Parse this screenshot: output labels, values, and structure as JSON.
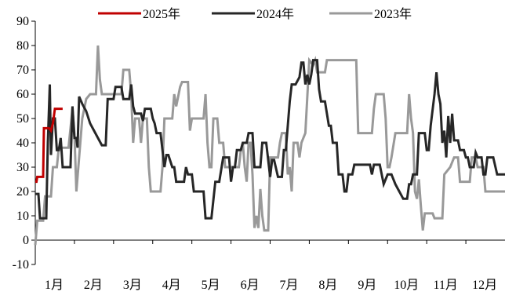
{
  "chart_data": {
    "type": "line",
    "title": "",
    "xlabel": "",
    "ylabel": "",
    "ylim": [
      -10,
      90
    ],
    "yticks": [
      -10,
      0,
      10,
      20,
      30,
      40,
      50,
      60,
      70,
      80,
      90
    ],
    "xlim": [
      1,
      13
    ],
    "x_tick_labels": [
      "1月",
      "2月",
      "3月",
      "4月",
      "5月",
      "6月",
      "7月",
      "8月",
      "9月",
      "10月",
      "11月",
      "12月"
    ],
    "legend_position": "top",
    "grid": false,
    "series": [
      {
        "name": "2025年",
        "color": "#c00000",
        "points": [
          [
            1.0,
            24
          ],
          [
            1.03,
            24
          ],
          [
            1.05,
            26
          ],
          [
            1.1,
            26
          ],
          [
            1.15,
            26
          ],
          [
            1.2,
            26
          ],
          [
            1.22,
            46
          ],
          [
            1.3,
            46
          ],
          [
            1.35,
            46
          ],
          [
            1.4,
            45
          ],
          [
            1.45,
            48
          ],
          [
            1.5,
            54
          ],
          [
            1.6,
            54
          ],
          [
            1.7,
            54
          ]
        ]
      },
      {
        "name": "2024年",
        "color": "#262626",
        "points": [
          [
            1.0,
            19
          ],
          [
            1.08,
            19
          ],
          [
            1.12,
            9
          ],
          [
            1.28,
            9
          ],
          [
            1.32,
            40
          ],
          [
            1.37,
            64
          ],
          [
            1.4,
            35
          ],
          [
            1.45,
            50
          ],
          [
            1.5,
            50
          ],
          [
            1.55,
            37
          ],
          [
            1.6,
            37
          ],
          [
            1.65,
            42
          ],
          [
            1.7,
            30
          ],
          [
            1.9,
            30
          ],
          [
            1.95,
            55
          ],
          [
            2.0,
            42
          ],
          [
            2.05,
            42
          ],
          [
            2.08,
            38
          ],
          [
            2.12,
            59
          ],
          [
            2.2,
            56
          ],
          [
            2.3,
            53
          ],
          [
            2.4,
            48
          ],
          [
            2.5,
            45
          ],
          [
            2.6,
            42
          ],
          [
            2.7,
            39
          ],
          [
            2.8,
            39
          ],
          [
            2.85,
            58
          ],
          [
            2.9,
            58
          ],
          [
            3.0,
            58
          ],
          [
            3.05,
            63
          ],
          [
            3.2,
            63
          ],
          [
            3.25,
            58
          ],
          [
            3.4,
            58
          ],
          [
            3.45,
            64
          ],
          [
            3.5,
            55
          ],
          [
            3.55,
            52
          ],
          [
            3.7,
            52
          ],
          [
            3.75,
            49
          ],
          [
            3.8,
            54
          ],
          [
            3.95,
            54
          ],
          [
            4.0,
            50
          ],
          [
            4.05,
            48
          ],
          [
            4.1,
            44
          ],
          [
            4.2,
            44
          ],
          [
            4.3,
            30
          ],
          [
            4.35,
            35
          ],
          [
            4.4,
            35
          ],
          [
            4.5,
            30
          ],
          [
            4.55,
            30
          ],
          [
            4.6,
            24
          ],
          [
            4.8,
            24
          ],
          [
            4.85,
            30
          ],
          [
            4.9,
            27
          ],
          [
            5.0,
            27
          ],
          [
            5.05,
            20
          ],
          [
            5.3,
            20
          ],
          [
            5.35,
            9
          ],
          [
            5.5,
            9
          ],
          [
            5.6,
            24
          ],
          [
            5.7,
            24
          ],
          [
            5.8,
            34
          ],
          [
            5.95,
            34
          ],
          [
            6.0,
            24
          ],
          [
            6.05,
            30
          ],
          [
            6.1,
            30
          ],
          [
            6.15,
            37
          ],
          [
            6.25,
            37
          ],
          [
            6.3,
            40
          ],
          [
            6.4,
            40
          ],
          [
            6.45,
            44
          ],
          [
            6.55,
            44
          ],
          [
            6.6,
            30
          ],
          [
            6.75,
            30
          ],
          [
            6.8,
            40
          ],
          [
            6.9,
            40
          ],
          [
            7.0,
            26
          ],
          [
            7.05,
            33
          ],
          [
            7.1,
            33
          ],
          [
            7.2,
            26
          ],
          [
            7.3,
            26
          ],
          [
            7.35,
            37
          ],
          [
            7.4,
            37
          ],
          [
            7.5,
            57
          ],
          [
            7.55,
            64
          ],
          [
            7.65,
            64
          ],
          [
            7.75,
            67
          ],
          [
            7.8,
            73
          ],
          [
            7.85,
            73
          ],
          [
            7.9,
            64
          ],
          [
            7.95,
            68
          ],
          [
            8.0,
            64
          ],
          [
            8.05,
            68
          ],
          [
            8.1,
            74
          ],
          [
            8.2,
            74
          ],
          [
            8.25,
            62
          ],
          [
            8.3,
            57
          ],
          [
            8.4,
            57
          ],
          [
            8.5,
            47
          ],
          [
            8.55,
            47
          ],
          [
            8.6,
            40
          ],
          [
            8.7,
            40
          ],
          [
            8.75,
            27
          ],
          [
            8.85,
            27
          ],
          [
            8.9,
            20
          ],
          [
            8.95,
            20
          ],
          [
            9.0,
            27
          ],
          [
            9.1,
            27
          ],
          [
            9.15,
            31
          ],
          [
            9.55,
            31
          ],
          [
            9.6,
            27
          ],
          [
            9.65,
            31
          ],
          [
            9.7,
            31
          ],
          [
            9.8,
            31
          ],
          [
            9.85,
            27
          ],
          [
            9.9,
            23
          ],
          [
            10.0,
            27
          ],
          [
            10.1,
            27
          ],
          [
            10.2,
            23
          ],
          [
            10.3,
            20
          ],
          [
            10.4,
            17
          ],
          [
            10.5,
            17
          ],
          [
            10.55,
            23
          ],
          [
            10.6,
            23
          ],
          [
            10.65,
            27
          ],
          [
            10.75,
            27
          ],
          [
            10.8,
            44
          ],
          [
            10.95,
            44
          ],
          [
            11.0,
            37
          ],
          [
            11.05,
            37
          ],
          [
            11.1,
            47
          ],
          [
            11.2,
            60
          ],
          [
            11.25,
            69
          ],
          [
            11.3,
            60
          ],
          [
            11.35,
            56
          ],
          [
            11.4,
            40
          ],
          [
            11.45,
            45
          ],
          [
            11.5,
            34
          ],
          [
            11.55,
            51
          ],
          [
            11.6,
            40
          ],
          [
            11.65,
            52
          ],
          [
            11.7,
            41
          ],
          [
            11.8,
            41
          ],
          [
            11.85,
            37
          ],
          [
            11.95,
            37
          ],
          [
            12.0,
            34
          ],
          [
            12.05,
            34
          ],
          [
            12.1,
            30
          ],
          [
            12.2,
            30
          ],
          [
            12.25,
            36
          ],
          [
            12.3,
            34
          ],
          [
            12.4,
            34
          ],
          [
            12.45,
            27
          ],
          [
            12.5,
            27
          ],
          [
            12.55,
            34
          ],
          [
            12.6,
            34
          ],
          [
            12.7,
            34
          ],
          [
            12.8,
            27
          ],
          [
            13.0,
            27
          ]
        ]
      },
      {
        "name": "2023年",
        "color": "#999999",
        "points": [
          [
            1.0,
            -2
          ],
          [
            1.05,
            8
          ],
          [
            1.2,
            8
          ],
          [
            1.25,
            18
          ],
          [
            1.4,
            18
          ],
          [
            1.45,
            30
          ],
          [
            1.55,
            30
          ],
          [
            1.6,
            38
          ],
          [
            1.8,
            38
          ],
          [
            1.85,
            38
          ],
          [
            1.95,
            54
          ],
          [
            2.0,
            44
          ],
          [
            2.05,
            20
          ],
          [
            2.1,
            30
          ],
          [
            2.2,
            50
          ],
          [
            2.3,
            58
          ],
          [
            2.4,
            60
          ],
          [
            2.45,
            60
          ],
          [
            2.55,
            60
          ],
          [
            2.6,
            80
          ],
          [
            2.65,
            66
          ],
          [
            2.7,
            60
          ],
          [
            3.0,
            60
          ],
          [
            3.05,
            60
          ],
          [
            3.2,
            60
          ],
          [
            3.25,
            70
          ],
          [
            3.4,
            70
          ],
          [
            3.45,
            60
          ],
          [
            3.5,
            40
          ],
          [
            3.55,
            50
          ],
          [
            3.65,
            50
          ],
          [
            3.7,
            40
          ],
          [
            3.75,
            50
          ],
          [
            3.85,
            50
          ],
          [
            3.9,
            30
          ],
          [
            3.95,
            20
          ],
          [
            4.2,
            20
          ],
          [
            4.25,
            30
          ],
          [
            4.3,
            50
          ],
          [
            4.5,
            50
          ],
          [
            4.55,
            60
          ],
          [
            4.6,
            55
          ],
          [
            4.7,
            63
          ],
          [
            4.75,
            65
          ],
          [
            4.9,
            65
          ],
          [
            4.95,
            45
          ],
          [
            5.0,
            50
          ],
          [
            5.3,
            50
          ],
          [
            5.35,
            60
          ],
          [
            5.4,
            40
          ],
          [
            5.45,
            30
          ],
          [
            5.5,
            30
          ],
          [
            5.55,
            50
          ],
          [
            5.65,
            50
          ],
          [
            5.7,
            40
          ],
          [
            5.8,
            40
          ],
          [
            5.85,
            30
          ],
          [
            6.2,
            30
          ],
          [
            6.25,
            37
          ],
          [
            6.3,
            40
          ],
          [
            6.35,
            30
          ],
          [
            6.4,
            24
          ],
          [
            6.45,
            40
          ],
          [
            6.5,
            40
          ],
          [
            6.55,
            27
          ],
          [
            6.6,
            5
          ],
          [
            6.65,
            10
          ],
          [
            6.7,
            5
          ],
          [
            6.75,
            21
          ],
          [
            6.8,
            10
          ],
          [
            6.85,
            4
          ],
          [
            6.95,
            4
          ],
          [
            7.0,
            34
          ],
          [
            7.2,
            34
          ],
          [
            7.25,
            40
          ],
          [
            7.3,
            44
          ],
          [
            7.4,
            44
          ],
          [
            7.45,
            27
          ],
          [
            7.5,
            30
          ],
          [
            7.55,
            20
          ],
          [
            7.6,
            40
          ],
          [
            7.7,
            40
          ],
          [
            7.75,
            34
          ],
          [
            7.8,
            40
          ],
          [
            7.9,
            44
          ],
          [
            8.0,
            74
          ],
          [
            8.1,
            72
          ],
          [
            8.15,
            74
          ],
          [
            8.2,
            69
          ],
          [
            8.4,
            69
          ],
          [
            8.45,
            74
          ],
          [
            9.2,
            74
          ],
          [
            9.25,
            44
          ],
          [
            9.4,
            44
          ],
          [
            9.6,
            44
          ],
          [
            9.65,
            54
          ],
          [
            9.7,
            60
          ],
          [
            9.8,
            60
          ],
          [
            9.9,
            60
          ],
          [
            9.95,
            50
          ],
          [
            10.0,
            30
          ],
          [
            10.05,
            30
          ],
          [
            10.1,
            34
          ],
          [
            10.2,
            44
          ],
          [
            10.5,
            44
          ],
          [
            10.55,
            60
          ],
          [
            10.6,
            50
          ],
          [
            10.65,
            44
          ],
          [
            10.7,
            20
          ],
          [
            10.75,
            17
          ],
          [
            10.8,
            25
          ],
          [
            10.85,
            14
          ],
          [
            10.9,
            4
          ],
          [
            10.95,
            11
          ],
          [
            11.15,
            11
          ],
          [
            11.2,
            9
          ],
          [
            11.4,
            9
          ],
          [
            11.45,
            27
          ],
          [
            11.6,
            30
          ],
          [
            11.7,
            34
          ],
          [
            11.8,
            34
          ],
          [
            11.85,
            24
          ],
          [
            12.1,
            24
          ],
          [
            12.15,
            34
          ],
          [
            12.25,
            34
          ],
          [
            12.3,
            30
          ],
          [
            12.45,
            30
          ],
          [
            12.5,
            20
          ],
          [
            12.6,
            20
          ],
          [
            12.65,
            20
          ],
          [
            13.0,
            20
          ]
        ]
      }
    ]
  }
}
